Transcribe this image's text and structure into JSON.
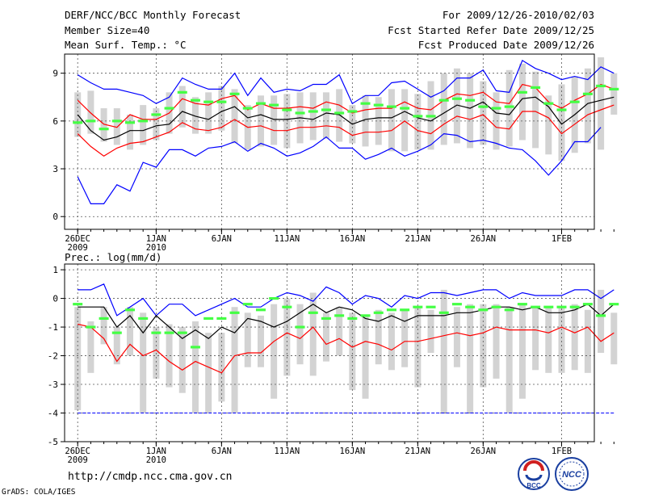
{
  "header": {
    "title": "DERF/NCC/BCC Monthly Forecast",
    "member_size": "Member Size=40",
    "variable": "Mean Surf. Temp.: °C",
    "period": "For 2009/12/26-2010/02/03",
    "start_date": "Fcst Started Refer Date 2009/12/25",
    "produced_date": "Fcst Produced Date 2009/12/26"
  },
  "footer": {
    "url": "http://cmdp.ncc.cma.gov.cn",
    "credit": "GrADS: COLA/IGES",
    "logo_bcc": "BCC",
    "logo_ncc": "NCC"
  },
  "colors": {
    "ensemble_mean": "#000000",
    "spread": "#ff0000",
    "extremes": "#0000ff",
    "box": "#d3d3d3",
    "marker": "#44ff44"
  },
  "chart_data": [
    {
      "type": "line",
      "title": "Mean Surf. Temp.: °C",
      "ylim": [
        -0.8,
        10.2
      ],
      "yticks": [
        0,
        3,
        6,
        9
      ],
      "xlim": [
        -1,
        39.5
      ],
      "xticks": [
        {
          "x": 0,
          "label": "26DEC",
          "sub": "2009"
        },
        {
          "x": 6,
          "label": "1JAN",
          "sub": "2010"
        },
        {
          "x": 11,
          "label": "6JAN",
          "sub": ""
        },
        {
          "x": 16,
          "label": "11JAN",
          "sub": ""
        },
        {
          "x": 21,
          "label": "16JAN",
          "sub": ""
        },
        {
          "x": 26,
          "label": "21JAN",
          "sub": ""
        },
        {
          "x": 31,
          "label": "26JAN",
          "sub": ""
        },
        {
          "x": 37,
          "label": "1FEB",
          "sub": ""
        }
      ],
      "series": [
        {
          "name": "max",
          "color": "#0000ff",
          "values": [
            8.9,
            8.4,
            8.0,
            8.0,
            7.8,
            7.6,
            7.1,
            7.5,
            8.7,
            8.3,
            8.0,
            8.0,
            9.0,
            7.6,
            8.7,
            7.8,
            8.0,
            7.9,
            8.3,
            8.3,
            8.9,
            7.1,
            7.6,
            7.6,
            8.4,
            8.5,
            8.0,
            7.5,
            7.9,
            8.7,
            8.7,
            9.2,
            7.9,
            7.8,
            9.8,
            9.3,
            9.0,
            8.6,
            8.8,
            8.6,
            9.4,
            9.0
          ]
        },
        {
          "name": "upper",
          "color": "#ff0000",
          "values": [
            7.3,
            6.5,
            5.8,
            5.6,
            6.4,
            6.1,
            6.1,
            6.5,
            7.4,
            7.1,
            7.0,
            7.4,
            7.6,
            6.7,
            7.1,
            6.8,
            6.8,
            6.9,
            6.8,
            7.2,
            7.0,
            6.5,
            6.7,
            6.8,
            6.8,
            7.2,
            6.8,
            6.7,
            7.3,
            7.7,
            7.6,
            7.8,
            7.2,
            7.1,
            8.3,
            8.1,
            7.2,
            6.8,
            7.3,
            7.7,
            8.3,
            8.0
          ]
        },
        {
          "name": "mean",
          "color": "#000000",
          "values": [
            6.4,
            5.4,
            4.8,
            5.0,
            5.4,
            5.4,
            5.7,
            5.8,
            6.6,
            6.3,
            6.1,
            6.6,
            6.9,
            6.2,
            6.4,
            6.1,
            6.1,
            6.2,
            6.1,
            6.5,
            6.4,
            5.8,
            6.1,
            6.2,
            6.2,
            6.6,
            6.2,
            6.0,
            6.5,
            7.0,
            6.8,
            7.2,
            6.5,
            6.4,
            7.4,
            7.5,
            6.9,
            5.8,
            6.4,
            7.1,
            7.3,
            7.5
          ]
        },
        {
          "name": "lower",
          "color": "#ff0000",
          "values": [
            5.2,
            4.4,
            3.8,
            4.3,
            4.6,
            4.7,
            5.0,
            5.3,
            5.9,
            5.5,
            5.4,
            5.6,
            6.1,
            5.6,
            5.7,
            5.4,
            5.4,
            5.6,
            5.6,
            5.7,
            5.6,
            5.1,
            5.3,
            5.3,
            5.4,
            6.0,
            5.4,
            5.2,
            5.8,
            6.3,
            6.1,
            6.4,
            5.6,
            5.5,
            6.6,
            6.6,
            6.2,
            5.2,
            5.8,
            6.4,
            6.7,
            7.0
          ]
        },
        {
          "name": "min",
          "color": "#0000ff",
          "values": [
            2.5,
            0.8,
            0.8,
            2.0,
            1.6,
            3.4,
            3.1,
            4.2,
            4.2,
            3.8,
            4.3,
            4.4,
            4.7,
            4.1,
            4.6,
            4.3,
            3.8,
            4.0,
            4.4,
            5.0,
            4.3,
            4.3,
            3.6,
            3.9,
            4.3,
            3.8,
            4.1,
            4.5,
            5.2,
            5.1,
            4.7,
            4.8,
            4.6,
            4.3,
            4.2,
            3.5,
            2.6,
            3.5,
            4.7,
            4.7,
            5.6,
            null
          ]
        }
      ],
      "boxes": [
        {
          "low": 5.0,
          "high": 7.8
        },
        {
          "low": 5.2,
          "high": 7.9
        },
        {
          "low": 4.7,
          "high": 6.8
        },
        {
          "low": 4.5,
          "high": 6.8
        },
        {
          "low": 4.2,
          "high": 6.4
        },
        {
          "low": 4.5,
          "high": 7.0
        },
        {
          "low": 4.8,
          "high": 6.8
        },
        {
          "low": 5.2,
          "high": 7.8
        },
        {
          "low": 5.6,
          "high": 8.2
        },
        {
          "low": 5.2,
          "high": 7.5
        },
        {
          "low": 5.2,
          "high": 7.8
        },
        {
          "low": 5.4,
          "high": 8.2
        },
        {
          "low": 4.6,
          "high": 8.0
        },
        {
          "low": 4.2,
          "high": 7.0
        },
        {
          "low": 4.4,
          "high": 7.6
        },
        {
          "low": 4.5,
          "high": 7.6
        },
        {
          "low": 4.3,
          "high": 7.7
        },
        {
          "low": 4.6,
          "high": 7.8
        },
        {
          "low": 4.8,
          "high": 7.8
        },
        {
          "low": 4.9,
          "high": 7.8
        },
        {
          "low": 4.7,
          "high": 8.0
        },
        {
          "low": 4.6,
          "high": 7.0
        },
        {
          "low": 4.4,
          "high": 7.6
        },
        {
          "low": 4.5,
          "high": 7.5
        },
        {
          "low": 4.1,
          "high": 8.0
        },
        {
          "low": 4.1,
          "high": 8.0
        },
        {
          "low": 4.2,
          "high": 7.7
        },
        {
          "low": 4.2,
          "high": 8.5
        },
        {
          "low": 4.5,
          "high": 9.0
        },
        {
          "low": 4.6,
          "high": 9.3
        },
        {
          "low": 4.3,
          "high": 9.0
        },
        {
          "low": 4.5,
          "high": 8.5
        },
        {
          "low": 4.2,
          "high": 7.8
        },
        {
          "low": 4.4,
          "high": 9.2
        },
        {
          "low": 4.8,
          "high": 9.6
        },
        {
          "low": 4.3,
          "high": 9.1
        },
        {
          "low": 3.9,
          "high": 7.6
        },
        {
          "low": 3.5,
          "high": 8.3
        },
        {
          "low": 4.0,
          "high": 8.8
        },
        {
          "low": 4.6,
          "high": 9.3
        },
        {
          "low": 4.2,
          "high": 10.0
        },
        {
          "low": 6.4,
          "high": 9.0
        }
      ],
      "markers": [
        5.9,
        6.0,
        5.5,
        6.0,
        5.9,
        6.0,
        6.4,
        6.8,
        7.8,
        7.3,
        7.2,
        7.2,
        7.7,
        6.8,
        7.1,
        7.0,
        6.7,
        6.5,
        6.6,
        6.7,
        6.5,
        6.6,
        7.1,
        7.0,
        6.9,
        6.8,
        6.3,
        6.3,
        7.3,
        7.4,
        7.3,
        6.9,
        6.8,
        6.9,
        7.8,
        8.1,
        7.1,
        6.7,
        7.2,
        7.7,
        8.2,
        8.0
      ]
    },
    {
      "type": "line",
      "title": "Prec.: log(mm/d)",
      "ylim": [
        -5,
        1.2
      ],
      "yticks": [
        -5,
        -4,
        -3,
        -2,
        -1,
        0,
        1
      ],
      "xlim": [
        -1,
        39.5
      ],
      "xticks": [
        {
          "x": 0,
          "label": "26DEC",
          "sub": "2009"
        },
        {
          "x": 6,
          "label": "1JAN",
          "sub": "2010"
        },
        {
          "x": 11,
          "label": "6JAN",
          "sub": ""
        },
        {
          "x": 16,
          "label": "11JAN",
          "sub": ""
        },
        {
          "x": 21,
          "label": "16JAN",
          "sub": ""
        },
        {
          "x": 26,
          "label": "21JAN",
          "sub": ""
        },
        {
          "x": 31,
          "label": "26JAN",
          "sub": ""
        },
        {
          "x": 37,
          "label": "1FEB",
          "sub": ""
        }
      ],
      "series": [
        {
          "name": "max",
          "color": "#0000ff",
          "values": [
            0.3,
            0.3,
            0.5,
            -0.6,
            -0.3,
            0.0,
            -0.6,
            -0.2,
            -0.2,
            -0.6,
            -0.4,
            -0.2,
            0.0,
            -0.3,
            -0.3,
            0.0,
            0.2,
            0.1,
            -0.1,
            0.4,
            0.2,
            -0.2,
            0.1,
            0.0,
            -0.3,
            0.1,
            0.0,
            0.2,
            0.2,
            0.1,
            0.2,
            0.3,
            0.3,
            0.0,
            0.2,
            0.1,
            0.1,
            0.1,
            0.3,
            0.3,
            0.0,
            0.3
          ]
        },
        {
          "name": "mean",
          "color": "#000000",
          "values": [
            -0.3,
            -0.3,
            -0.3,
            -1.0,
            -0.6,
            -1.2,
            -0.6,
            -1.0,
            -1.4,
            -1.1,
            -1.4,
            -1.0,
            -1.2,
            -0.7,
            -0.8,
            -1.0,
            -0.8,
            -0.5,
            -0.2,
            -0.5,
            -0.3,
            -0.4,
            -0.7,
            -0.8,
            -0.6,
            -0.8,
            -0.6,
            -0.6,
            -0.6,
            -0.5,
            -0.5,
            -0.4,
            -0.3,
            -0.3,
            -0.4,
            -0.3,
            -0.5,
            -0.5,
            -0.4,
            -0.2,
            -0.6,
            -0.2
          ]
        },
        {
          "name": "lower",
          "color": "#ff0000",
          "values": [
            -0.9,
            -1.0,
            -1.4,
            -2.2,
            -1.6,
            -2.0,
            -1.8,
            -2.2,
            -2.5,
            -2.2,
            -2.4,
            -2.6,
            -2.0,
            -1.9,
            -1.9,
            -1.5,
            -1.2,
            -1.4,
            -1.0,
            -1.6,
            -1.4,
            -1.7,
            -1.5,
            -1.6,
            -1.8,
            -1.5,
            -1.5,
            -1.4,
            -1.3,
            -1.2,
            -1.3,
            -1.2,
            -1.0,
            -1.1,
            -1.1,
            -1.1,
            -1.2,
            -1.0,
            -1.2,
            -1.0,
            -1.5,
            -1.2
          ]
        },
        {
          "name": "bottom",
          "color": "#0000ff",
          "values": [
            -4,
            -4,
            -4,
            -4,
            -4,
            -4,
            -4,
            -4,
            -4,
            -4,
            -4,
            -4,
            -4,
            -4,
            -4,
            -4,
            -4,
            -4,
            -4,
            -4,
            -4,
            -4,
            -4,
            -4,
            -4,
            -4,
            -4,
            -4,
            -4,
            -4,
            -4,
            -4,
            -4,
            -4,
            -4,
            -4,
            -4,
            -4,
            -4,
            -4,
            -4,
            -4
          ]
        }
      ],
      "boxes": [
        {
          "low": -3.9,
          "high": -0.3
        },
        {
          "low": -2.6,
          "high": -0.8
        },
        {
          "low": -1.6,
          "high": -0.3
        },
        {
          "low": -2.3,
          "high": -1.0
        },
        {
          "low": -2.0,
          "high": -0.3
        },
        {
          "low": -4.0,
          "high": -0.5
        },
        {
          "low": -2.8,
          "high": -1.0
        },
        {
          "low": -3.1,
          "high": -0.9
        },
        {
          "low": -3.3,
          "high": -1.0
        },
        {
          "low": -4.0,
          "high": -0.8
        },
        {
          "low": -4.0,
          "high": -1.2
        },
        {
          "low": -3.6,
          "high": -1.2
        },
        {
          "low": -4.0,
          "high": -0.3
        },
        {
          "low": -2.4,
          "high": -0.5
        },
        {
          "low": -2.4,
          "high": -0.6
        },
        {
          "low": -3.5,
          "high": -0.2
        },
        {
          "low": -2.7,
          "high": 0.0
        },
        {
          "low": -2.3,
          "high": -0.2
        },
        {
          "low": -2.7,
          "high": 0.2
        },
        {
          "low": -2.2,
          "high": -0.5
        },
        {
          "low": -2.0,
          "high": -0.3
        },
        {
          "low": -3.2,
          "high": -0.5
        },
        {
          "low": -3.5,
          "high": -0.6
        },
        {
          "low": -2.3,
          "high": -0.4
        },
        {
          "low": -2.5,
          "high": -0.5
        },
        {
          "low": -2.4,
          "high": -0.4
        },
        {
          "low": -3.1,
          "high": -0.3
        },
        {
          "low": -1.9,
          "high": -0.4
        },
        {
          "low": -4.0,
          "high": 0.3
        },
        {
          "low": -2.4,
          "high": -0.3
        },
        {
          "low": -4.0,
          "high": -0.2
        },
        {
          "low": -3.1,
          "high": -0.2
        },
        {
          "low": -2.8,
          "high": -0.2
        },
        {
          "low": -4.0,
          "high": -0.3
        },
        {
          "low": -3.5,
          "high": -0.2
        },
        {
          "low": -2.5,
          "high": -0.3
        },
        {
          "low": -2.6,
          "high": -0.3
        },
        {
          "low": -2.6,
          "high": -0.3
        },
        {
          "low": -2.5,
          "high": -0.2
        },
        {
          "low": -2.6,
          "high": -0.4
        },
        {
          "low": -1.9,
          "high": 0.3
        },
        {
          "low": -2.3,
          "high": -0.5
        }
      ],
      "markers": [
        -0.2,
        -1.0,
        -0.7,
        -1.2,
        -0.4,
        -0.7,
        -1.2,
        -1.2,
        -1.2,
        -1.7,
        -0.7,
        -0.7,
        -0.5,
        -0.2,
        -0.4,
        0.0,
        -0.3,
        -1.0,
        -0.5,
        -0.7,
        -0.6,
        -0.7,
        -0.6,
        -0.5,
        -0.4,
        -0.4,
        -0.3,
        -0.3,
        -0.5,
        -0.2,
        -0.3,
        -0.4,
        -0.3,
        -0.4,
        -0.2,
        -0.3,
        -0.3,
        -0.3,
        -0.3,
        -0.2,
        -0.6,
        -0.2
      ]
    }
  ]
}
